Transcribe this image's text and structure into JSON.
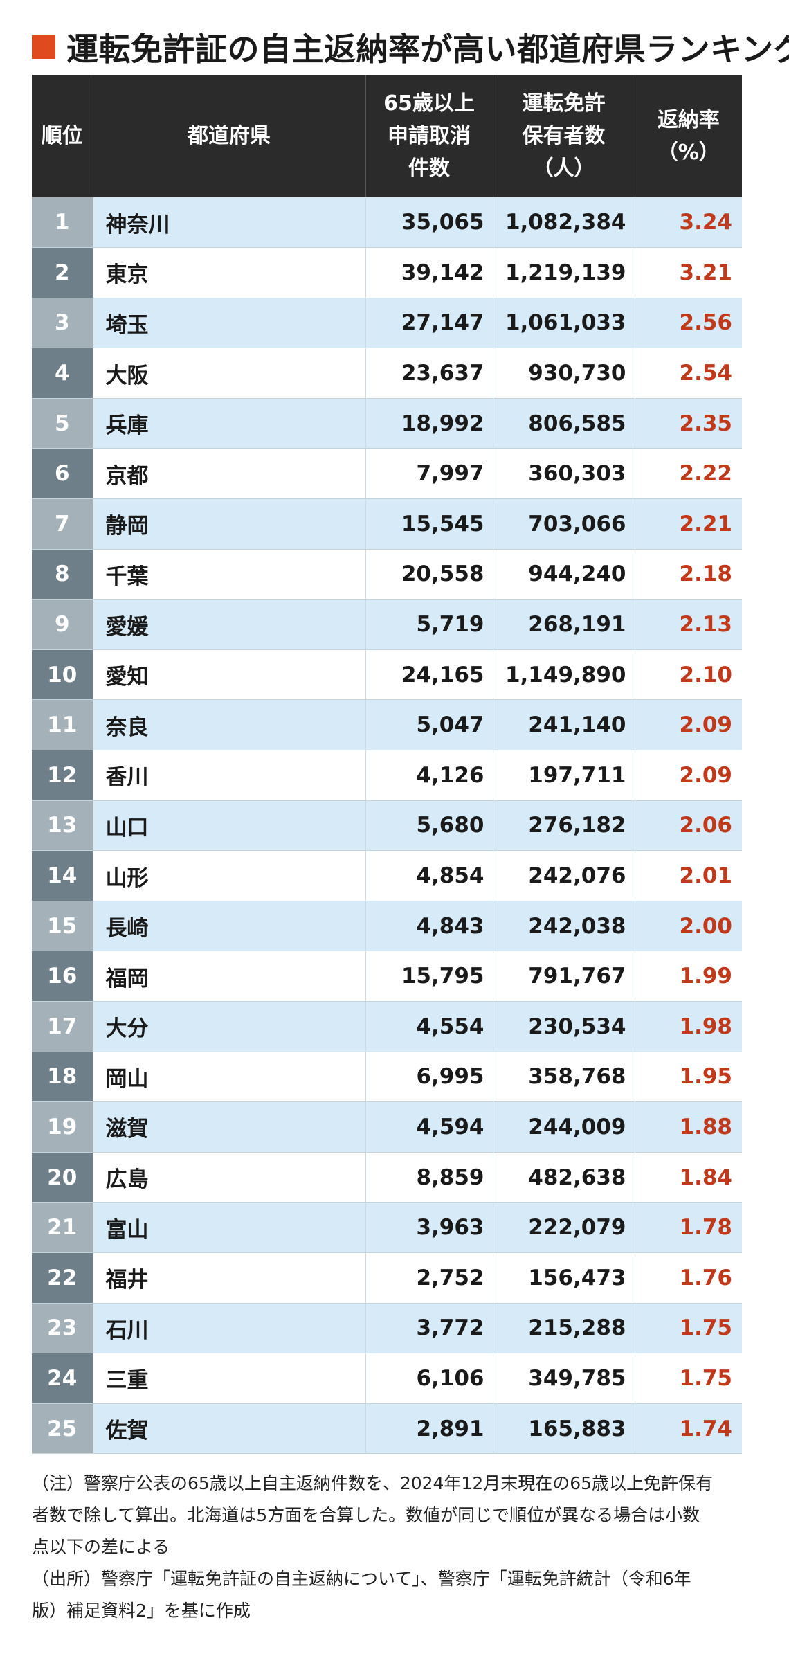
{
  "title": "運転免許証の自主返納率が高い都道府県ランキング",
  "colors": {
    "accent": "#e04a1f",
    "header_bg": "#2b2b2b",
    "rate_text": "#c0391b",
    "row_blue": "#d6ebf7"
  },
  "table": {
    "headers": {
      "rank": "順位",
      "prefecture": "都道府県",
      "applications": [
        "65歳以上",
        "申請取消",
        "件数"
      ],
      "holders": [
        "運転免許",
        "保有者数",
        "（人）"
      ],
      "rate": [
        "返納率",
        "（%）"
      ]
    },
    "rows": [
      {
        "rank": "1",
        "prefecture": "神奈川",
        "applications": "35,065",
        "holders": "1,082,384",
        "rate": "3.24"
      },
      {
        "rank": "2",
        "prefecture": "東京",
        "applications": "39,142",
        "holders": "1,219,139",
        "rate": "3.21"
      },
      {
        "rank": "3",
        "prefecture": "埼玉",
        "applications": "27,147",
        "holders": "1,061,033",
        "rate": "2.56"
      },
      {
        "rank": "4",
        "prefecture": "大阪",
        "applications": "23,637",
        "holders": "930,730",
        "rate": "2.54"
      },
      {
        "rank": "5",
        "prefecture": "兵庫",
        "applications": "18,992",
        "holders": "806,585",
        "rate": "2.35"
      },
      {
        "rank": "6",
        "prefecture": "京都",
        "applications": "7,997",
        "holders": "360,303",
        "rate": "2.22"
      },
      {
        "rank": "7",
        "prefecture": "静岡",
        "applications": "15,545",
        "holders": "703,066",
        "rate": "2.21"
      },
      {
        "rank": "8",
        "prefecture": "千葉",
        "applications": "20,558",
        "holders": "944,240",
        "rate": "2.18"
      },
      {
        "rank": "9",
        "prefecture": "愛媛",
        "applications": "5,719",
        "holders": "268,191",
        "rate": "2.13"
      },
      {
        "rank": "10",
        "prefecture": "愛知",
        "applications": "24,165",
        "holders": "1,149,890",
        "rate": "2.10"
      },
      {
        "rank": "11",
        "prefecture": "奈良",
        "applications": "5,047",
        "holders": "241,140",
        "rate": "2.09"
      },
      {
        "rank": "12",
        "prefecture": "香川",
        "applications": "4,126",
        "holders": "197,711",
        "rate": "2.09"
      },
      {
        "rank": "13",
        "prefecture": "山口",
        "applications": "5,680",
        "holders": "276,182",
        "rate": "2.06"
      },
      {
        "rank": "14",
        "prefecture": "山形",
        "applications": "4,854",
        "holders": "242,076",
        "rate": "2.01"
      },
      {
        "rank": "15",
        "prefecture": "長崎",
        "applications": "4,843",
        "holders": "242,038",
        "rate": "2.00"
      },
      {
        "rank": "16",
        "prefecture": "福岡",
        "applications": "15,795",
        "holders": "791,767",
        "rate": "1.99"
      },
      {
        "rank": "17",
        "prefecture": "大分",
        "applications": "4,554",
        "holders": "230,534",
        "rate": "1.98"
      },
      {
        "rank": "18",
        "prefecture": "岡山",
        "applications": "6,995",
        "holders": "358,768",
        "rate": "1.95"
      },
      {
        "rank": "19",
        "prefecture": "滋賀",
        "applications": "4,594",
        "holders": "244,009",
        "rate": "1.88"
      },
      {
        "rank": "20",
        "prefecture": "広島",
        "applications": "8,859",
        "holders": "482,638",
        "rate": "1.84"
      },
      {
        "rank": "21",
        "prefecture": "富山",
        "applications": "3,963",
        "holders": "222,079",
        "rate": "1.78"
      },
      {
        "rank": "22",
        "prefecture": "福井",
        "applications": "2,752",
        "holders": "156,473",
        "rate": "1.76"
      },
      {
        "rank": "23",
        "prefecture": "石川",
        "applications": "3,772",
        "holders": "215,288",
        "rate": "1.75"
      },
      {
        "rank": "24",
        "prefecture": "三重",
        "applications": "6,106",
        "holders": "349,785",
        "rate": "1.75"
      },
      {
        "rank": "25",
        "prefecture": "佐賀",
        "applications": "2,891",
        "holders": "165,883",
        "rate": "1.74"
      }
    ]
  },
  "notes": {
    "note_lines": [
      "（注）警察庁公表の65歳以上自主返納件数を、2024年12月末現在の65歳以上免許保有",
      "者数で除して算出。北海道は5方面を合算した。数値が同じで順位が異なる場合は小数",
      "点以下の差による"
    ],
    "source_lines": [
      "（出所）警察庁「運転免許証の自主返納について」、警察庁「運転免許統計（令和6年",
      "版）補足資料2」を基に作成"
    ]
  }
}
